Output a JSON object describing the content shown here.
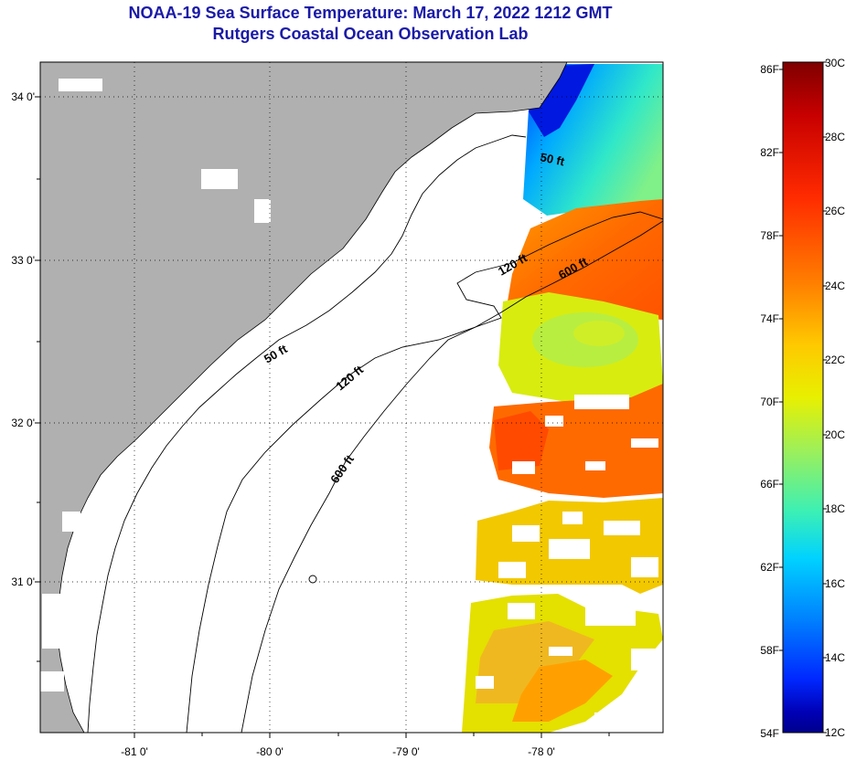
{
  "header": {
    "title": "NOAA-19 Sea Surface Temperature:  March 17, 2022 1212 GMT",
    "subtitle": "Rutgers Coastal Ocean Observation Lab"
  },
  "map": {
    "lat_labels": [
      "34 0'",
      "33 0'",
      "32 0'",
      "31 0'"
    ],
    "lon_labels": [
      "-81 0'",
      "-80 0'",
      "-79 0'",
      "-78 0'"
    ],
    "contour_labels": [
      "50 ft",
      "120 ft",
      "600 ft",
      "50 ft",
      "120 ft",
      "600 ft"
    ],
    "land_color": "#b0b0b0",
    "water_no_data_color": "#ffffff"
  },
  "colorbar": {
    "fahrenheit_labels": [
      "86F",
      "82F",
      "78F",
      "74F",
      "70F",
      "66F",
      "62F",
      "58F",
      "54F"
    ],
    "celsius_labels": [
      "30C",
      "28C",
      "26C",
      "24C",
      "22C",
      "20C",
      "18C",
      "16C",
      "14C",
      "12C"
    ],
    "colors": [
      "#7f0000",
      "#c80000",
      "#ff2a00",
      "#ff7f00",
      "#ffc800",
      "#e8f000",
      "#9cf05a",
      "#3cf0b4",
      "#00d2ff",
      "#0082ff",
      "#0028ff",
      "#0000b4",
      "#00008c"
    ]
  }
}
